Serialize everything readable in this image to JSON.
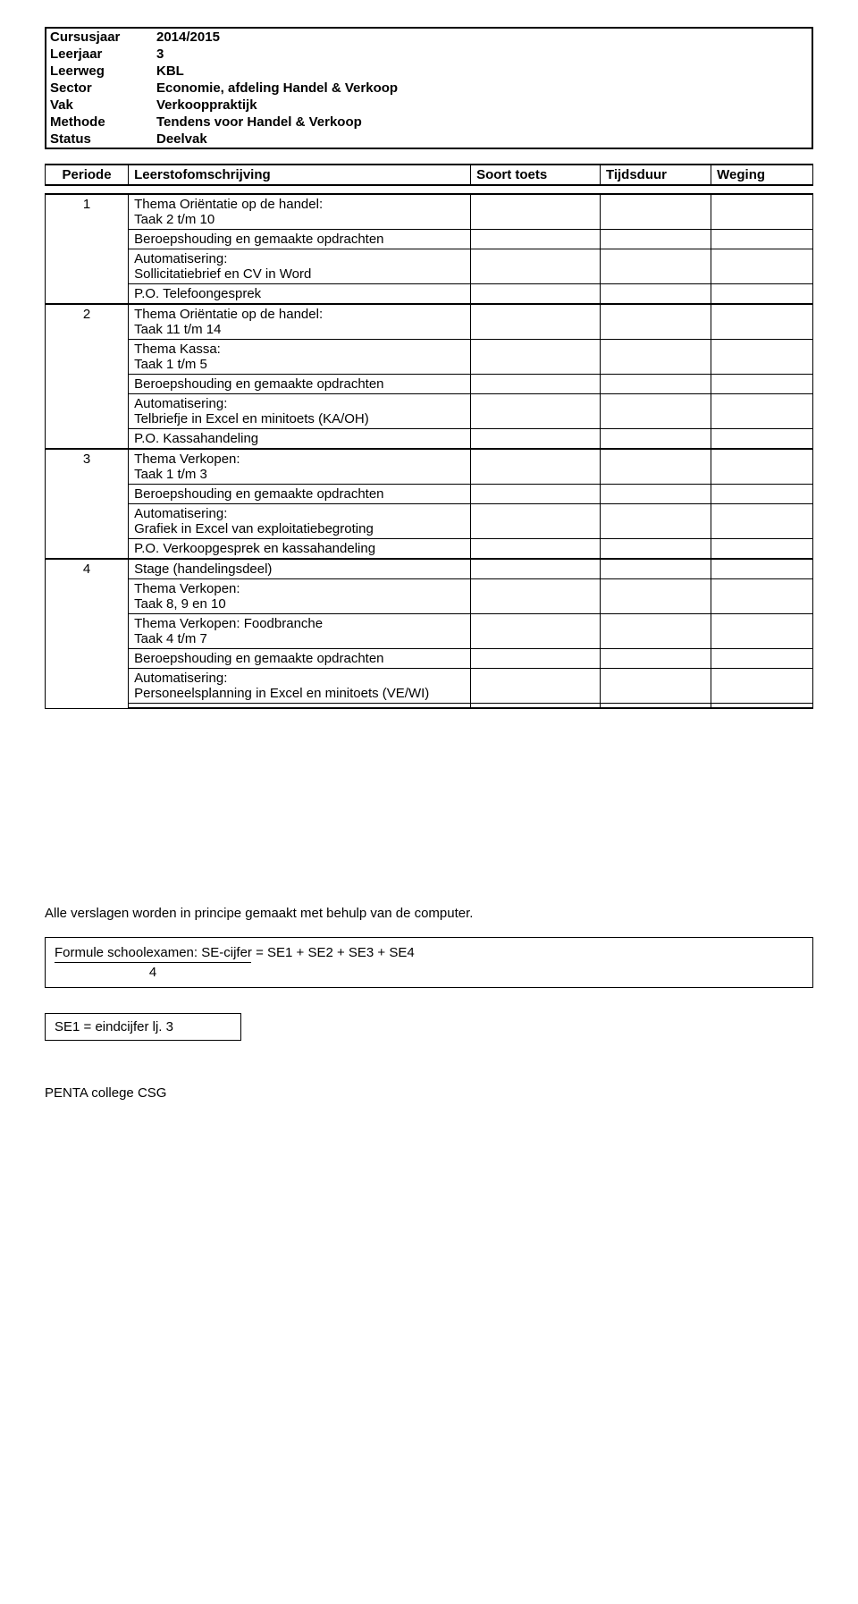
{
  "header": {
    "rows": [
      {
        "label": "Cursusjaar",
        "value": "2014/2015"
      },
      {
        "label": "Leerjaar",
        "value": "3"
      },
      {
        "label": "Leerweg",
        "value": "KBL"
      },
      {
        "label": "Sector",
        "value": "Economie, afdeling Handel & Verkoop"
      },
      {
        "label": "Vak",
        "value": "Verkooppraktijk"
      },
      {
        "label": "Methode",
        "value": "Tendens voor Handel & Verkoop"
      },
      {
        "label": "Status",
        "value": "Deelvak"
      }
    ]
  },
  "columns": {
    "periode": "Periode",
    "leerstof": "Leerstofomschrijving",
    "soort": "Soort toets",
    "tijdsduur": "Tijdsduur",
    "weging": "Weging"
  },
  "periods": [
    {
      "num": "1",
      "rows": [
        "Thema Oriëntatie op de handel:\nTaak 2 t/m 10",
        "Beroepshouding en gemaakte opdrachten",
        "Automatisering:\nSollicitatiebrief en CV in Word",
        "P.O. Telefoongesprek"
      ]
    },
    {
      "num": "2",
      "rows": [
        "Thema Oriëntatie op de handel:\nTaak 11 t/m 14",
        "Thema Kassa:\nTaak 1 t/m 5",
        "Beroepshouding en gemaakte opdrachten",
        "Automatisering:\nTelbriefje in Excel en minitoets (KA/OH)",
        "P.O. Kassahandeling"
      ]
    },
    {
      "num": "3",
      "rows": [
        "Thema Verkopen:\nTaak 1 t/m 3",
        "Beroepshouding en gemaakte opdrachten",
        "Automatisering:\nGrafiek in Excel van exploitatiebegroting",
        "P.O. Verkoopgesprek en kassahandeling"
      ]
    },
    {
      "num": "4",
      "rows": [
        "Stage (handelingsdeel)",
        "Thema Verkopen:\nTaak 8, 9 en 10",
        "Thema Verkopen: Foodbranche\nTaak 4 t/m 7",
        "Beroepshouding en gemaakte opdrachten",
        "Automatisering:\nPersoneelsplanning in Excel en minitoets (VE/WI)",
        ""
      ]
    }
  ],
  "note": "Alle verslagen worden in principe gemaakt met behulp van de computer.",
  "formula": {
    "text": "Formule schoolexamen: SE-cijfer = SE1 + SE2 + SE3 + SE4",
    "denominator": "4"
  },
  "se_box": "SE1 = eindcijfer lj. 3",
  "footer": "PENTA college CSG"
}
